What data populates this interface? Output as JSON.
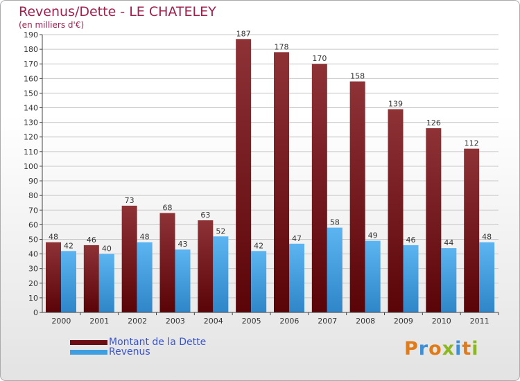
{
  "title": "Revenus/Dette - LE CHATELEY",
  "subtitle": "(en milliers d'€)",
  "colors": {
    "dette": "#7a1d22",
    "revenus": "#4aa3e0",
    "title": "#a0204e",
    "legend_text": "#3a55cc"
  },
  "legend": [
    {
      "label": "Montant de la Dette",
      "color": "#6b0d12"
    },
    {
      "label": "Revenus",
      "color": "#3f9ee0"
    }
  ],
  "logo": {
    "text": "Proxiti"
  },
  "chart_data": {
    "type": "bar",
    "title": "Revenus/Dette - LE CHATELEY",
    "subtitle": "(en milliers d'€)",
    "categories": [
      "2000",
      "2001",
      "2002",
      "2003",
      "2004",
      "2005",
      "2006",
      "2007",
      "2008",
      "2009",
      "2010",
      "2011"
    ],
    "series": [
      {
        "name": "Montant de la Dette",
        "values": [
          48,
          46,
          73,
          68,
          63,
          187,
          178,
          170,
          158,
          139,
          126,
          112
        ]
      },
      {
        "name": "Revenus",
        "values": [
          42,
          40,
          48,
          43,
          52,
          42,
          47,
          58,
          49,
          46,
          44,
          48
        ]
      }
    ],
    "ylim": [
      0,
      190
    ],
    "ytick_step": 10,
    "grid": true,
    "legend_position": "bottom-left"
  }
}
